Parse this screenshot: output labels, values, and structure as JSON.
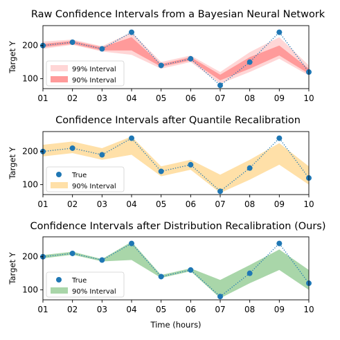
{
  "figure": {
    "xlabel": "Time (hours)"
  },
  "chart_data": [
    {
      "type": "line",
      "title": "Raw Confidence Intervals from a Bayesian Neural Network",
      "xlabel": "",
      "ylabel": "Target Y",
      "categories": [
        "01",
        "02",
        "03",
        "04",
        "05",
        "06",
        "07",
        "08",
        "09",
        "10"
      ],
      "ylim": [
        70,
        260
      ],
      "yticks": [
        100,
        200
      ],
      "grid": false,
      "legend_position": "lower-left",
      "series": [
        {
          "label": "true",
          "values": [
            200,
            210,
            190,
            240,
            140,
            160,
            80,
            150,
            240,
            120
          ],
          "color": "#1f77b4"
        }
      ],
      "bands": [
        {
          "name": "99% Interval",
          "lower": [
            190,
            202,
            182,
            172,
            130,
            150,
            85,
            120,
            160,
            110
          ],
          "upper": [
            212,
            218,
            198,
            240,
            150,
            170,
            120,
            180,
            225,
            140
          ],
          "color": "#ffd6d6"
        },
        {
          "name": "90% Interval",
          "lower": [
            195,
            205,
            185,
            185,
            136,
            155,
            95,
            130,
            170,
            115
          ],
          "upper": [
            205,
            214,
            195,
            225,
            144,
            165,
            112,
            165,
            200,
            130
          ],
          "color": "#ff9a9a"
        }
      ],
      "legend": [
        {
          "label": "99% Interval",
          "kind": "band",
          "color": "#ffd6d6"
        },
        {
          "label": "90% Interval",
          "kind": "band",
          "color": "#ff9a9a"
        }
      ]
    },
    {
      "type": "line",
      "title": "Confidence Intervals after Quantile Recalibration",
      "xlabel": "",
      "ylabel": "Target Y",
      "categories": [
        "01",
        "02",
        "03",
        "04",
        "05",
        "06",
        "07",
        "08",
        "09",
        "10"
      ],
      "ylim": [
        70,
        260
      ],
      "yticks": [
        100,
        200
      ],
      "grid": false,
      "legend_position": "lower-left",
      "series": [
        {
          "name": "True",
          "values": [
            200,
            210,
            190,
            240,
            140,
            160,
            80,
            150,
            240,
            120
          ],
          "color": "#1f77b4"
        }
      ],
      "bands": [
        {
          "name": "90% Interval",
          "lower": [
            185,
            195,
            175,
            190,
            125,
            145,
            75,
            115,
            160,
            100
          ],
          "upper": [
            220,
            230,
            210,
            245,
            155,
            175,
            130,
            175,
            225,
            155
          ],
          "color": "#ffe0a8"
        }
      ],
      "legend": [
        {
          "label": "True",
          "kind": "marker",
          "color": "#1f77b4"
        },
        {
          "label": "90% Interval",
          "kind": "band",
          "color": "#ffe0a8"
        }
      ]
    },
    {
      "type": "line",
      "title": "Confidence Intervals after Distribution Recalibration (Ours)",
      "xlabel": "",
      "ylabel": "Target Y",
      "categories": [
        "01",
        "02",
        "03",
        "04",
        "05",
        "06",
        "07",
        "08",
        "09",
        "10"
      ],
      "ylim": [
        70,
        260
      ],
      "yticks": [
        100,
        200
      ],
      "grid": false,
      "legend_position": "lower-left",
      "series": [
        {
          "name": "True",
          "values": [
            200,
            210,
            190,
            240,
            140,
            160,
            80,
            150,
            240,
            120
          ],
          "color": "#1f77b4"
        }
      ],
      "bands": [
        {
          "name": "90% Interval",
          "lower": [
            195,
            206,
            186,
            190,
            136,
            156,
            75,
            120,
            160,
            100
          ],
          "upper": [
            205,
            215,
            193,
            245,
            145,
            165,
            130,
            175,
            222,
            160
          ],
          "color": "#a9d6a9"
        }
      ],
      "legend": [
        {
          "label": "True",
          "kind": "marker",
          "color": "#1f77b4"
        },
        {
          "label": "90% Interval",
          "kind": "band",
          "color": "#a9d6a9"
        }
      ]
    }
  ]
}
